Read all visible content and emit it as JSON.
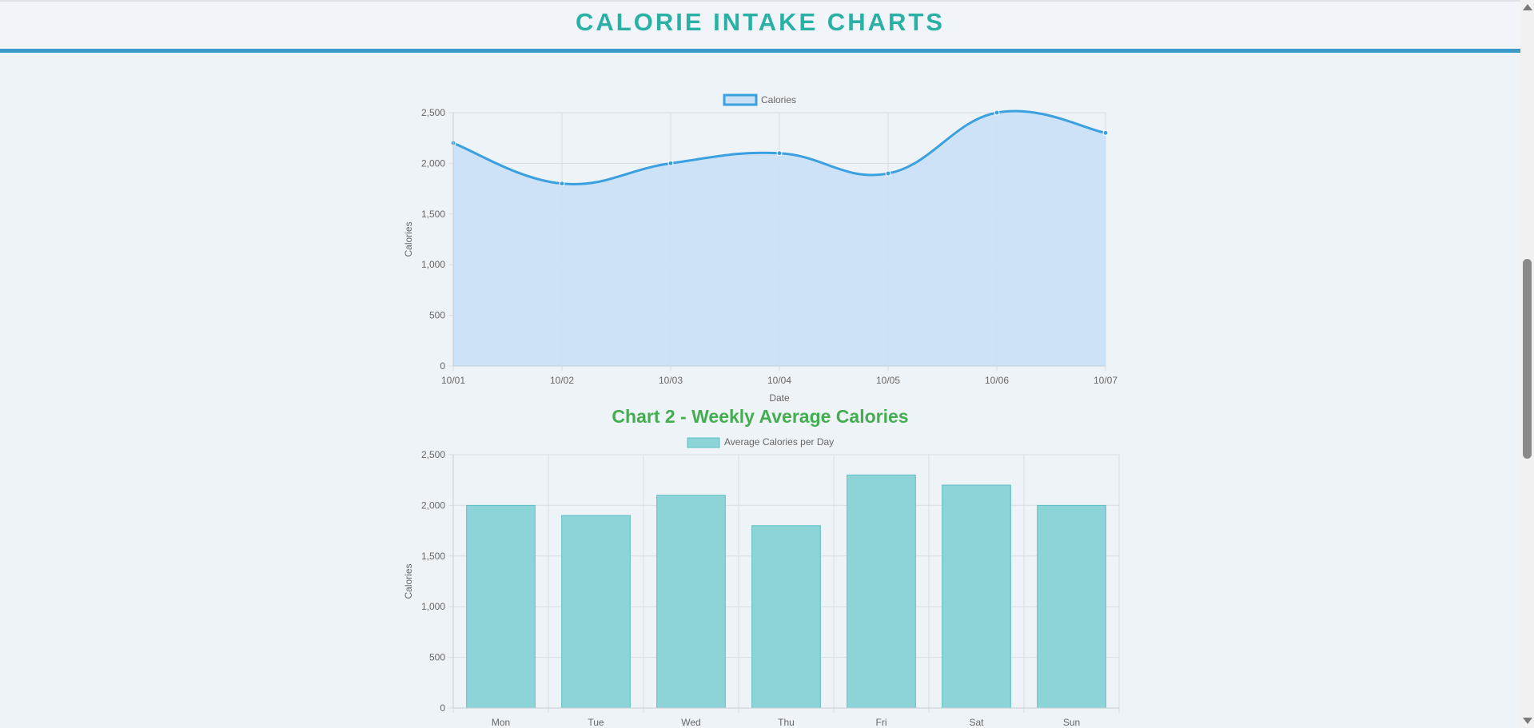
{
  "header": {
    "title": "CALORIE INTAKE CHARTS"
  },
  "chart_data": [
    {
      "type": "line",
      "fill": true,
      "title": "",
      "xlabel": "Date",
      "ylabel": "Calories",
      "categories": [
        "10/01",
        "10/02",
        "10/03",
        "10/04",
        "10/05",
        "10/06",
        "10/07"
      ],
      "series": [
        {
          "name": "Calories",
          "values": [
            2200,
            1800,
            2000,
            2100,
            1900,
            2500,
            2300
          ]
        }
      ],
      "ylim": [
        0,
        2500
      ],
      "yticks": [
        "0",
        "500",
        "1,000",
        "1,500",
        "2,000",
        "2,500"
      ],
      "grid": true,
      "legend": "top",
      "line_color": "#3ba0e0",
      "fill_color": "#c9e0f5"
    },
    {
      "type": "bar",
      "title": "Chart 2 - Weekly Average Calories",
      "xlabel": "",
      "ylabel": "Calories",
      "categories": [
        "Mon",
        "Tue",
        "Wed",
        "Thu",
        "Fri",
        "Sat",
        "Sun"
      ],
      "series": [
        {
          "name": "Average Calories per Day",
          "values": [
            2000,
            1900,
            2100,
            1800,
            2300,
            2200,
            2000
          ]
        }
      ],
      "ylim": [
        0,
        2500
      ],
      "yticks": [
        "0",
        "500",
        "1,000",
        "1,500",
        "2,000",
        "2,500"
      ],
      "grid": true,
      "legend": "top",
      "bar_color": "#8dd4d8",
      "bar_border_color": "#5cc0c4"
    }
  ]
}
